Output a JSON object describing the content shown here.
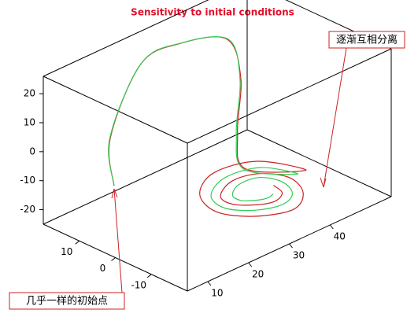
{
  "chart_data": {
    "type": "line3d",
    "title": "Sensitivity to initial conditions",
    "xlim": [
      5,
      55
    ],
    "ylim": [
      -20,
      20
    ],
    "zlim": [
      -25,
      26
    ],
    "xticks": [
      10,
      20,
      30,
      40
    ],
    "yticks": [
      -10,
      0,
      10
    ],
    "zticks": [
      -20,
      -10,
      0,
      10,
      20
    ],
    "series": [
      {
        "color": "#cc2222",
        "x": [
          13.5,
          12.6,
          20.1,
          29.7,
          41.2,
          44.6,
          43.8,
          36.8,
          50,
          46,
          38,
          31,
          28,
          31,
          38,
          44,
          46,
          43,
          38,
          33,
          32,
          34.5,
          38,
          41.5,
          42
        ],
        "y": [
          10,
          10,
          10,
          10,
          10,
          10,
          10,
          0,
          -2,
          7,
          10,
          6,
          -2,
          -9,
          -12,
          -8,
          -2,
          3,
          5,
          2.5,
          -2,
          -6,
          -7,
          -5,
          -2
        ],
        "z": [
          -11.5,
          5.5,
          26.2,
          27,
          21,
          5.5,
          -12.8,
          -15,
          -23,
          -22.5,
          -23,
          -23.5,
          -23,
          -22.5,
          -23,
          -23.5,
          -23,
          -22.5,
          -23,
          -23.5,
          -23,
          -22.5,
          -23,
          -23.5,
          -23
        ]
      },
      {
        "color": "#33cc55",
        "x": [
          13.5,
          12.5,
          20.3,
          29.9,
          41.5,
          44.4,
          43.5,
          36.5,
          48,
          44.7,
          38,
          32,
          30,
          32.7,
          38,
          42.6,
          44,
          41.9,
          38,
          34.8,
          34,
          35.5,
          38,
          40.1
        ],
        "y": [
          10,
          10,
          10,
          10,
          10,
          10,
          10,
          0,
          -2,
          4.7,
          7,
          4,
          -2,
          -7.3,
          -9,
          -6.6,
          -2,
          1.9,
          3,
          1.2,
          -2,
          -4.5,
          -5,
          -4.1
        ],
        "z": [
          -11.2,
          5.7,
          26.4,
          27,
          20.8,
          5.3,
          -13.1,
          -15,
          -23,
          -22.5,
          -23,
          -23.5,
          -23,
          -22.5,
          -23,
          -23.5,
          -23,
          -22.5,
          -23,
          -23.5,
          -23,
          -22.5,
          -23,
          -23.5
        ]
      }
    ],
    "annotations": [
      {
        "text": "逐渐互相分离"
      },
      {
        "text": "几乎一样的初始点"
      }
    ]
  }
}
